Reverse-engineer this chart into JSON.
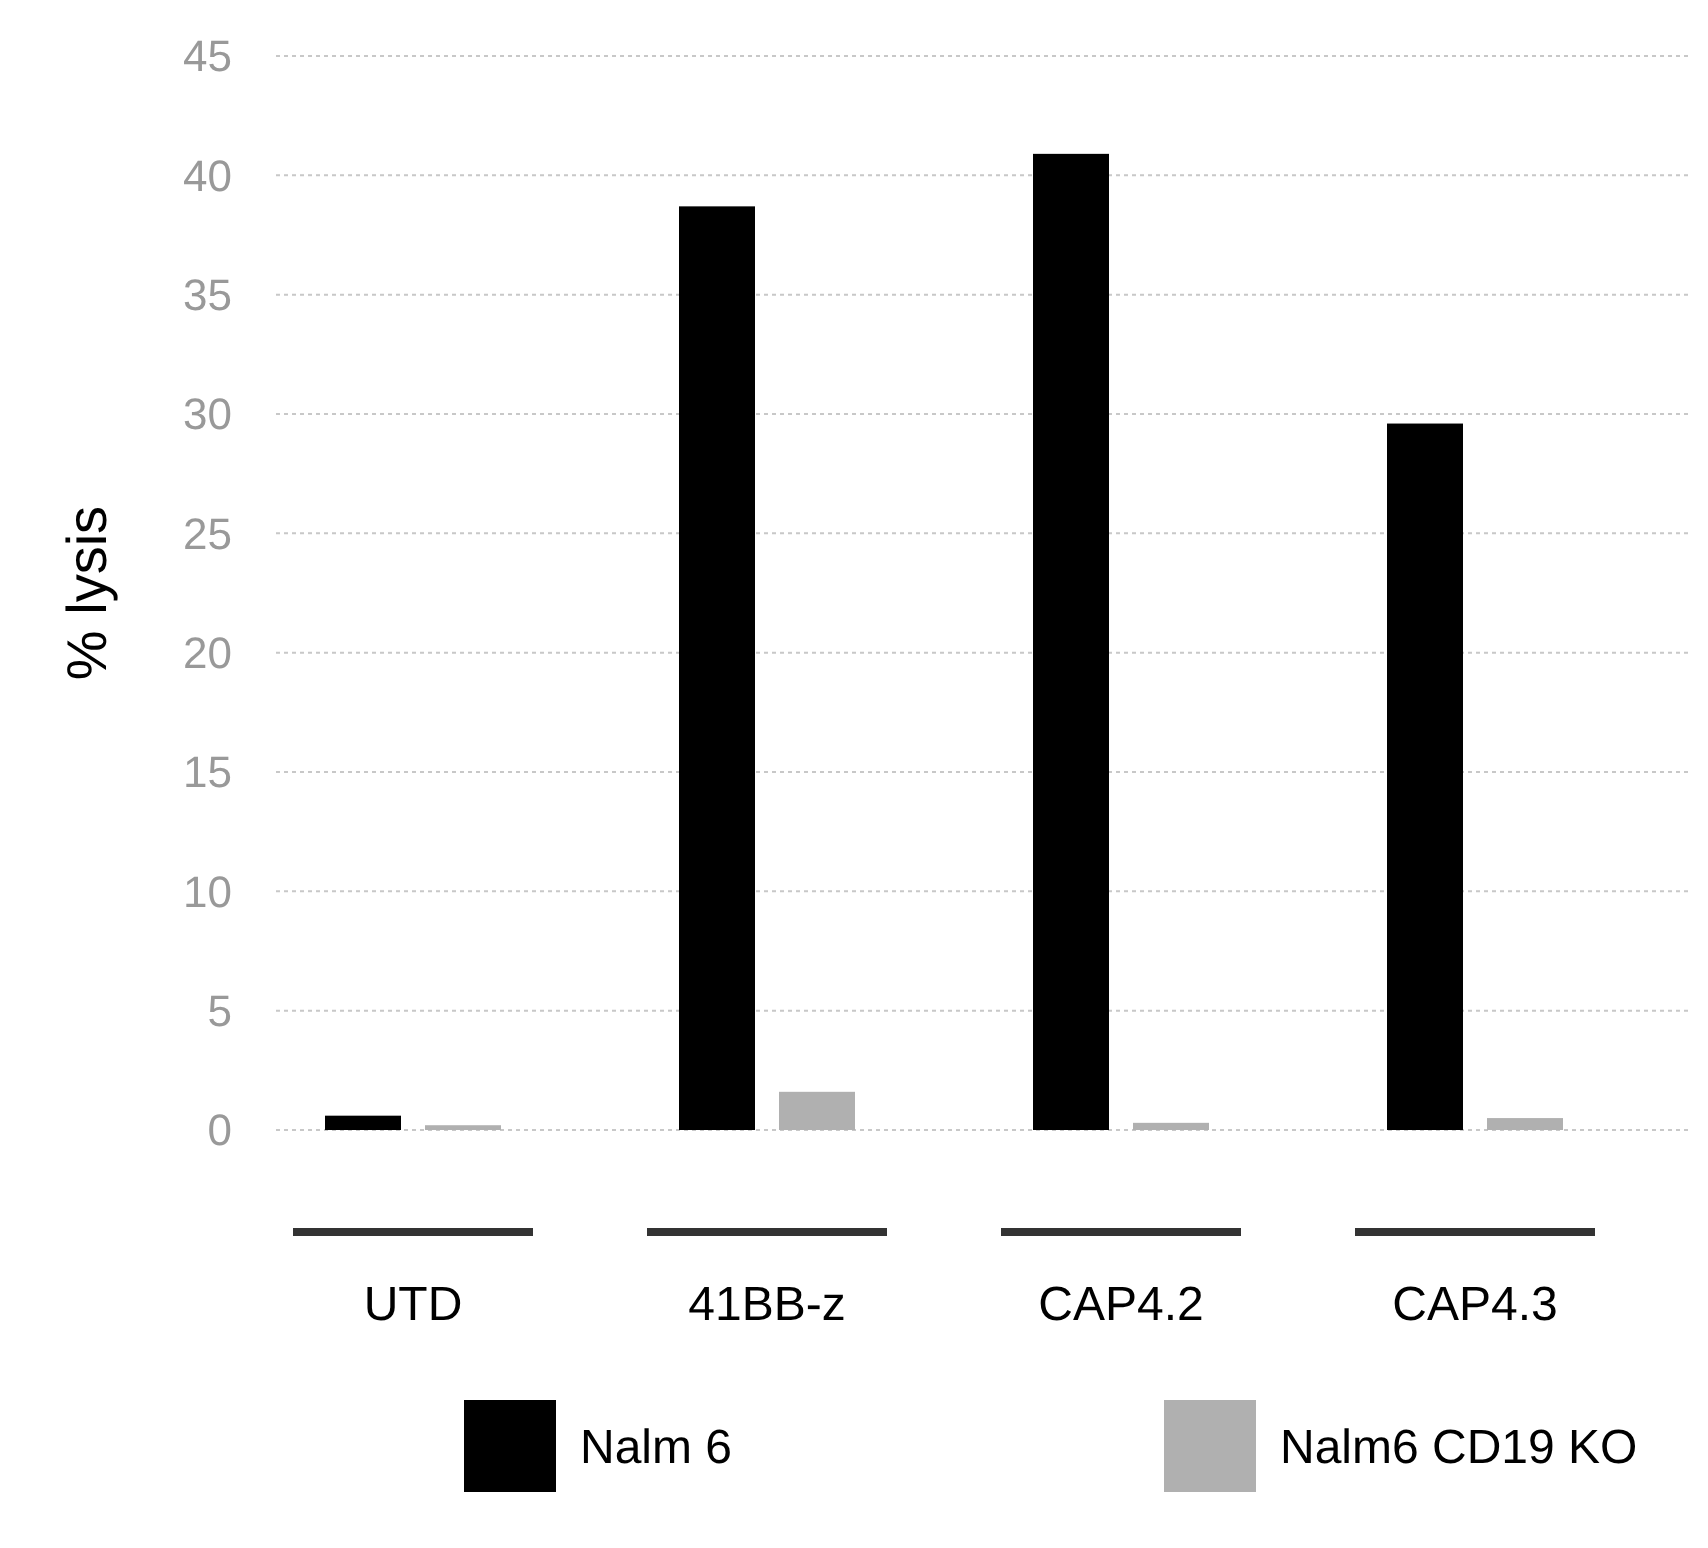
{
  "chart_data": {
    "type": "bar",
    "ylabel": "% lysis",
    "categories": [
      "UTD",
      "41BB-z",
      "CAP4.2",
      "CAP4.3"
    ],
    "series": [
      {
        "name": "Nalm 6",
        "color": "#000000",
        "values": [
          0.6,
          38.7,
          40.9,
          29.6
        ]
      },
      {
        "name": "Nalm6 CD19 KO",
        "color": "#b0b0b0",
        "values": [
          0.2,
          1.6,
          0.3,
          0.5
        ]
      }
    ],
    "ylim": [
      0,
      45
    ],
    "yticks": [
      0,
      5,
      10,
      15,
      20,
      25,
      30,
      35,
      40,
      45
    ],
    "grid": "y",
    "legend": "bottom"
  }
}
